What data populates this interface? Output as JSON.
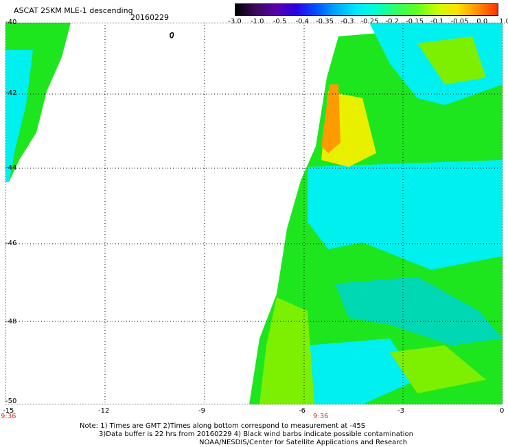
{
  "header": {
    "title": "ASCAT 25KM MLE-1 descending",
    "date": "20160229"
  },
  "colorbar": {
    "labels": [
      "-3.0",
      "-1.0",
      "-0.5",
      "-0.4",
      "-0.35",
      "-0.3",
      "-0.25",
      "-0.2",
      "-0.15",
      "-0.1",
      "-0.05",
      "0.0",
      "1.0"
    ],
    "colors": [
      "#000000",
      "#3a0a5a",
      "#5a00a8",
      "#2a00e0",
      "#0050ff",
      "#00a8ff",
      "#00e8ff",
      "#00ffcc",
      "#30ff60",
      "#60ff20",
      "#c8ff00",
      "#ffe000",
      "#ff9000",
      "#ff3000"
    ]
  },
  "map": {
    "lat_labels": [
      "-40",
      "-42",
      "-44",
      "-46",
      "-48",
      "-50"
    ],
    "lon_labels": [
      "-15",
      "-12",
      "-9",
      "-6",
      "-3",
      "0"
    ],
    "time_labels": [
      "9:36",
      "9:36"
    ],
    "swath_colors": {
      "green": "#1ee61e",
      "lime": "#7cf000",
      "cyan": "#00f0f0",
      "teal": "#00d8b4",
      "yellow": "#e8f000",
      "orange": "#ff9a00"
    }
  },
  "note": {
    "line1": "Note: 1) Times are GMT 2)Times along bottom correspond to measurement at -45S",
    "line2": "3)Data buffer is 22 hrs from 20160229 4) Black wind barbs indicate possible contamination",
    "line3": "NOAA/NESDIS/Center for Satellite Applications and Research"
  }
}
